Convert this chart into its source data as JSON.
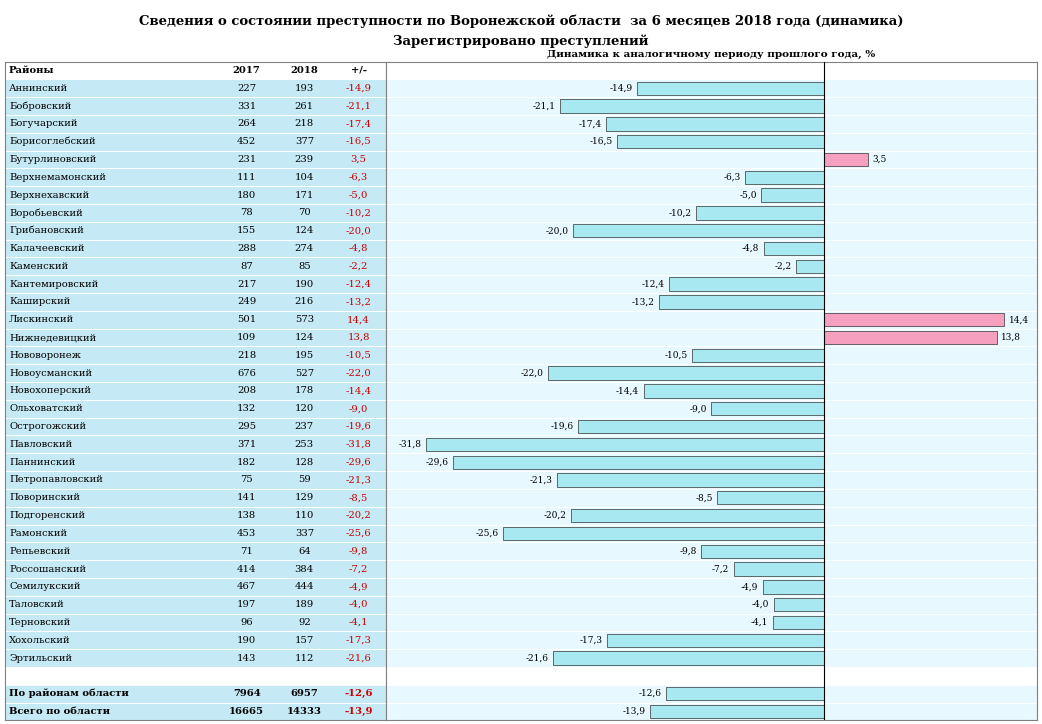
{
  "title1": "Сведения о состоянии преступности по Воронежской области  за 6 месяцев 2018 года (динамика)",
  "title2": "Зарегистрировано преступлений",
  "subtitle": "Динамика к аналогичному периоду прошлого года, %",
  "districts": [
    "Аннинский",
    "Бобровский",
    "Богучарский",
    "Борисоглебский",
    "Бутурлиновский",
    "Верхнемамонский",
    "Верхнехавский",
    "Воробьевский",
    "Грибановский",
    "Калачеевский",
    "Каменский",
    "Кантемировский",
    "Каширский",
    "Лискинский",
    "Нижнедевицкий",
    "Нововоронеж",
    "Новоусманский",
    "Новохоперский",
    "Ольховатский",
    "Острогожский",
    "Павловский",
    "Паннинский",
    "Петропавловский",
    "Поворинский",
    "Подгоренский",
    "Рамонский",
    "Репьевский",
    "Россошанский",
    "Семилукский",
    "Таловский",
    "Терновский",
    "Хохольский",
    "Эртильский"
  ],
  "val2017": [
    227,
    331,
    264,
    452,
    231,
    111,
    180,
    78,
    155,
    288,
    87,
    217,
    249,
    501,
    109,
    218,
    676,
    208,
    132,
    295,
    371,
    182,
    75,
    141,
    138,
    453,
    71,
    414,
    467,
    197,
    96,
    190,
    143
  ],
  "val2018": [
    193,
    261,
    218,
    377,
    239,
    104,
    171,
    70,
    124,
    274,
    85,
    190,
    216,
    573,
    124,
    195,
    527,
    178,
    120,
    237,
    253,
    128,
    59,
    129,
    110,
    337,
    64,
    384,
    444,
    189,
    92,
    157,
    112
  ],
  "dynamics": [
    -14.9,
    -21.1,
    -17.4,
    -16.5,
    3.5,
    -6.3,
    -5.0,
    -10.2,
    -20.0,
    -4.8,
    -2.2,
    -12.4,
    -13.2,
    14.4,
    13.8,
    -10.5,
    -22.0,
    -14.4,
    -9.0,
    -19.6,
    -31.8,
    -29.6,
    -21.3,
    -8.5,
    -20.2,
    -25.6,
    -9.8,
    -7.2,
    -4.9,
    -4.0,
    -4.1,
    -17.3,
    -21.6
  ],
  "summary_districts": [
    "По районам области",
    "Всего по области"
  ],
  "summary_2017": [
    7964,
    16665
  ],
  "summary_2018": [
    6957,
    14333
  ],
  "summary_dynamics": [
    -12.6,
    -13.9
  ],
  "pos_color": "#F4A0BE",
  "neg_color": "#A8E8F0",
  "row_bg_color": "#C5EAF5",
  "header_bg": "#FFFFFF",
  "blank_bg": "#FFFFFF",
  "bar_area_bg": "#E8F8FF",
  "bar_xlim": [
    -35.0,
    17.0
  ],
  "title_fontsize": 9.5,
  "label_fontsize": 7.2,
  "bar_label_fontsize": 6.5
}
